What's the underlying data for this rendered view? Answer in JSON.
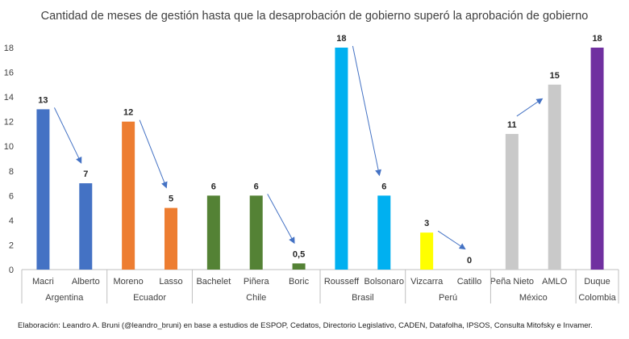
{
  "chart_data": {
    "type": "bar",
    "title": "Cantidad de meses de gestión hasta que la desaprobación de gobierno superó la aprobación de gobierno",
    "ylim": [
      0,
      18
    ],
    "yticks": [
      "0",
      "2",
      "4",
      "6",
      "8",
      "10",
      "12",
      "14",
      "16",
      "18"
    ],
    "grid": false,
    "legend": "none",
    "categories": [
      "Macri",
      "Alberto",
      "Moreno",
      "Lasso",
      "Bachelet",
      "Piñera",
      "Boric",
      "Rousseff",
      "Bolsonaro",
      "Vizcarra",
      "Catillo",
      "Peña Nieto",
      "AMLO",
      "Duque"
    ],
    "values": [
      13,
      7,
      12,
      5,
      6,
      6,
      0.5,
      18,
      6,
      3,
      0,
      11,
      15,
      18
    ],
    "value_labels": [
      "13",
      "7",
      "12",
      "5",
      "6",
      "6",
      "0,5",
      "18",
      "6",
      "3",
      "0",
      "11",
      "15",
      "18"
    ],
    "colors": [
      "#4472C4",
      "#4472C4",
      "#ED7D31",
      "#ED7D31",
      "#548235",
      "#548235",
      "#548235",
      "#00B0F0",
      "#00B0F0",
      "#FFFF00",
      "#FFFF00",
      "#C9C9C9",
      "#C9C9C9",
      "#7030A0"
    ],
    "groups": [
      {
        "name": "Argentina",
        "members": 2
      },
      {
        "name": "Ecuador",
        "members": 2
      },
      {
        "name": "Chile",
        "members": 3
      },
      {
        "name": "Brasil",
        "members": 2
      },
      {
        "name": "Perú",
        "members": 2
      },
      {
        "name": "México",
        "members": 2
      },
      {
        "name": "Colombia",
        "members": 1
      }
    ],
    "arrows": [
      {
        "from": 13,
        "to": 7,
        "direction": "down"
      },
      {
        "from": 12,
        "to": 5,
        "direction": "down"
      },
      {
        "from": 6,
        "to": 0.5,
        "direction": "down"
      },
      {
        "from": 18,
        "to": 6,
        "direction": "down"
      },
      {
        "from": 3,
        "to": 0,
        "direction": "down"
      },
      {
        "from": 11,
        "to": 15,
        "direction": "up"
      }
    ]
  },
  "footer": "Elaboración: Leandro A. Bruni (@leandro_bruni) en base a estudios de ESPOP, Cedatos, Directorio Legislativo, CADEN, Datafolha, IPSOS, Consulta Mitofsky e Invamer.",
  "colors": {
    "axis": "#bfbfbf",
    "text": "#404040",
    "arrow": "#4472C4"
  }
}
